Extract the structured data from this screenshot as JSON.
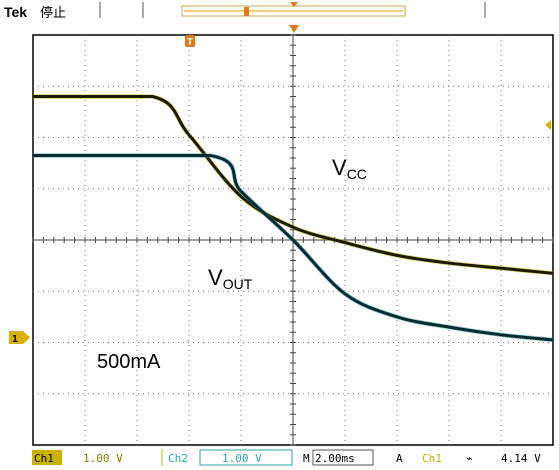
{
  "header": {
    "brand": "Tek",
    "status": "停止"
  },
  "markers": {
    "trigger_position": "T",
    "ground": "1"
  },
  "annotations": {
    "vcc_main": "V",
    "vcc_sub": "CC",
    "vout_main": "V",
    "vout_sub": "OUT",
    "load": "500mA"
  },
  "status_bar": {
    "ch1_tag": "Ch1",
    "ch1_scale": "1.00 V",
    "ch2_tag": "Ch2",
    "ch2_scale": "1.00 V",
    "timebase_tag": "M",
    "timebase": "2.00ms",
    "trig_mode": "A",
    "trig_source": "Ch1",
    "trig_slope": "⌁",
    "trig_level": "4.14 V"
  },
  "colors": {
    "vcc_trace": "#1a1a00",
    "vout_trace": "#0a2a2e",
    "ch1_accent": "#c8b400",
    "ch2_accent": "#2aa6b0",
    "trigger_marker": "#e07a1a",
    "ground_marker": "#d8b000"
  },
  "chart_data": {
    "type": "line",
    "x_unit": "div",
    "y_unit": "div",
    "xlim": [
      0,
      10
    ],
    "ylim": [
      0,
      8
    ],
    "grid": true,
    "series": [
      {
        "color_key": "vcc_trace",
        "x": [
          0,
          2.3,
          3.0,
          4.0,
          5.0,
          6.0,
          7.0,
          8.0,
          9.0,
          10.0
        ],
        "y": [
          6.8,
          6.8,
          6.05,
          4.85,
          4.25,
          3.95,
          3.7,
          3.55,
          3.45,
          3.35
        ]
      },
      {
        "color_key": "vout_trace",
        "x": [
          0,
          3.4,
          4.0,
          5.0,
          6.0,
          7.0,
          8.0,
          9.0,
          10.0
        ],
        "y": [
          5.65,
          5.65,
          4.95,
          4.0,
          2.95,
          2.5,
          2.3,
          2.15,
          2.05
        ]
      }
    ]
  }
}
